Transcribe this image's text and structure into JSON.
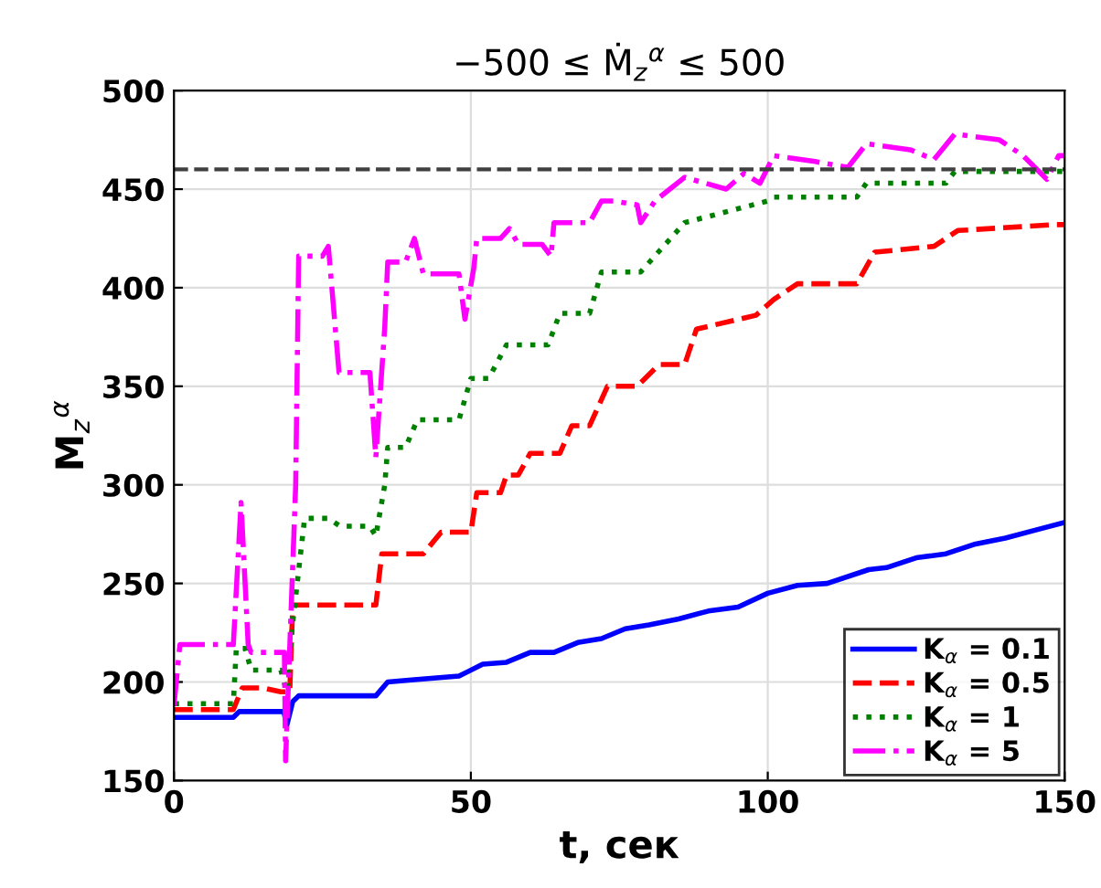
{
  "chart_data": {
    "type": "line",
    "title": "−500 ≤ Ṁ$_{z}$$^{α}$ ≤ 500",
    "xlabel": "t, сек",
    "ylabel": "M$_{z}$$^{α}$",
    "xlim": [
      0,
      150
    ],
    "ylim": [
      150,
      500
    ],
    "xticks": [
      0,
      50,
      100,
      150
    ],
    "yticks": [
      150,
      200,
      250,
      300,
      350,
      400,
      450,
      500
    ],
    "grid": true,
    "legend": "bottom right",
    "ref_lines": [
      {
        "axis": "y",
        "value": 460,
        "color": "#404040",
        "line_style": "dashed"
      }
    ],
    "series": [
      {
        "name": "K$_{α}$ = 0.1",
        "color": "#0000ff",
        "line_style": "solid",
        "x": [
          0,
          10,
          11,
          18.5,
          19,
          20,
          21,
          34,
          36,
          40,
          48,
          52,
          56,
          60,
          64,
          68,
          72,
          76,
          80,
          85,
          90,
          95,
          100,
          105,
          110,
          117,
          120,
          125,
          130,
          135,
          140,
          145,
          150
        ],
        "values": [
          182,
          182,
          185,
          185,
          178,
          190,
          193,
          193,
          200,
          201,
          203,
          209,
          210,
          215,
          215,
          220,
          222,
          227,
          229,
          232,
          236,
          238,
          245,
          249,
          250,
          257,
          258,
          263,
          265,
          270,
          273,
          277,
          281
        ]
      },
      {
        "name": "K$_{α}$ = 0.5",
        "color": "#ff0000",
        "line_style": "dashed",
        "x": [
          0,
          10,
          11.5,
          15,
          18,
          19.5,
          20,
          34,
          35,
          36,
          42,
          45,
          50,
          51,
          55,
          56,
          58,
          60,
          65,
          67,
          70,
          73,
          78,
          81.7,
          86,
          88,
          98,
          101,
          105,
          115,
          118,
          128,
          132,
          148.5,
          150
        ],
        "values": [
          186,
          186,
          197,
          197,
          195,
          195,
          239,
          239,
          265,
          265,
          265,
          276,
          276,
          296,
          296,
          305,
          305,
          316,
          316,
          330,
          330,
          350,
          350,
          361,
          361,
          379,
          386,
          394,
          402,
          402,
          418,
          421,
          429,
          432,
          432
        ]
      },
      {
        "name": "K$_{α}$ = 1",
        "color": "#008000",
        "line_style": "dotted",
        "x": [
          0,
          10,
          10.5,
          12,
          13,
          18,
          19,
          20,
          22,
          26,
          28,
          33,
          34,
          35.5,
          36,
          39,
          41,
          48,
          50,
          53,
          56,
          63,
          65,
          70,
          72,
          78.6,
          86,
          100,
          101,
          115,
          116.6,
          130,
          131.5,
          150
        ],
        "values": [
          189,
          189,
          217,
          217,
          206,
          206,
          195,
          230,
          283,
          283,
          279,
          279,
          274,
          300,
          319,
          319,
          333,
          333,
          354,
          354,
          371,
          371,
          387,
          387,
          408,
          408,
          433,
          444,
          446,
          446,
          453,
          453,
          459,
          459
        ]
      },
      {
        "name": "K$_{α}$ = 5",
        "color": "#ff00ff",
        "line_style": "dashdot",
        "x": [
          0,
          1,
          10,
          11.3,
          12.5,
          13,
          18.6,
          18.8,
          20.5,
          21,
          25,
          26,
          27.8,
          28,
          33,
          34,
          35.5,
          36,
          39,
          40.5,
          42,
          48,
          49,
          50.5,
          51,
          55,
          56.5,
          58,
          62,
          63.5,
          64,
          70,
          72,
          74,
          78,
          78.6,
          81,
          86,
          93,
          96,
          98.7,
          101,
          108,
          113.5,
          116.6,
          124,
          128,
          131.5,
          139,
          143,
          147,
          149,
          150
        ],
        "values": [
          188,
          219,
          219,
          291,
          219,
          215,
          215,
          160,
          300,
          416,
          416,
          421,
          357,
          357,
          357,
          314,
          380,
          413,
          413,
          425,
          407,
          407,
          384,
          410,
          425,
          425,
          430,
          422,
          422,
          416,
          433,
          433,
          444,
          444,
          442,
          433,
          444,
          456,
          450,
          458,
          453,
          467,
          464,
          461,
          473,
          470,
          465,
          478,
          475,
          467,
          455,
          467,
          467
        ]
      }
    ]
  }
}
